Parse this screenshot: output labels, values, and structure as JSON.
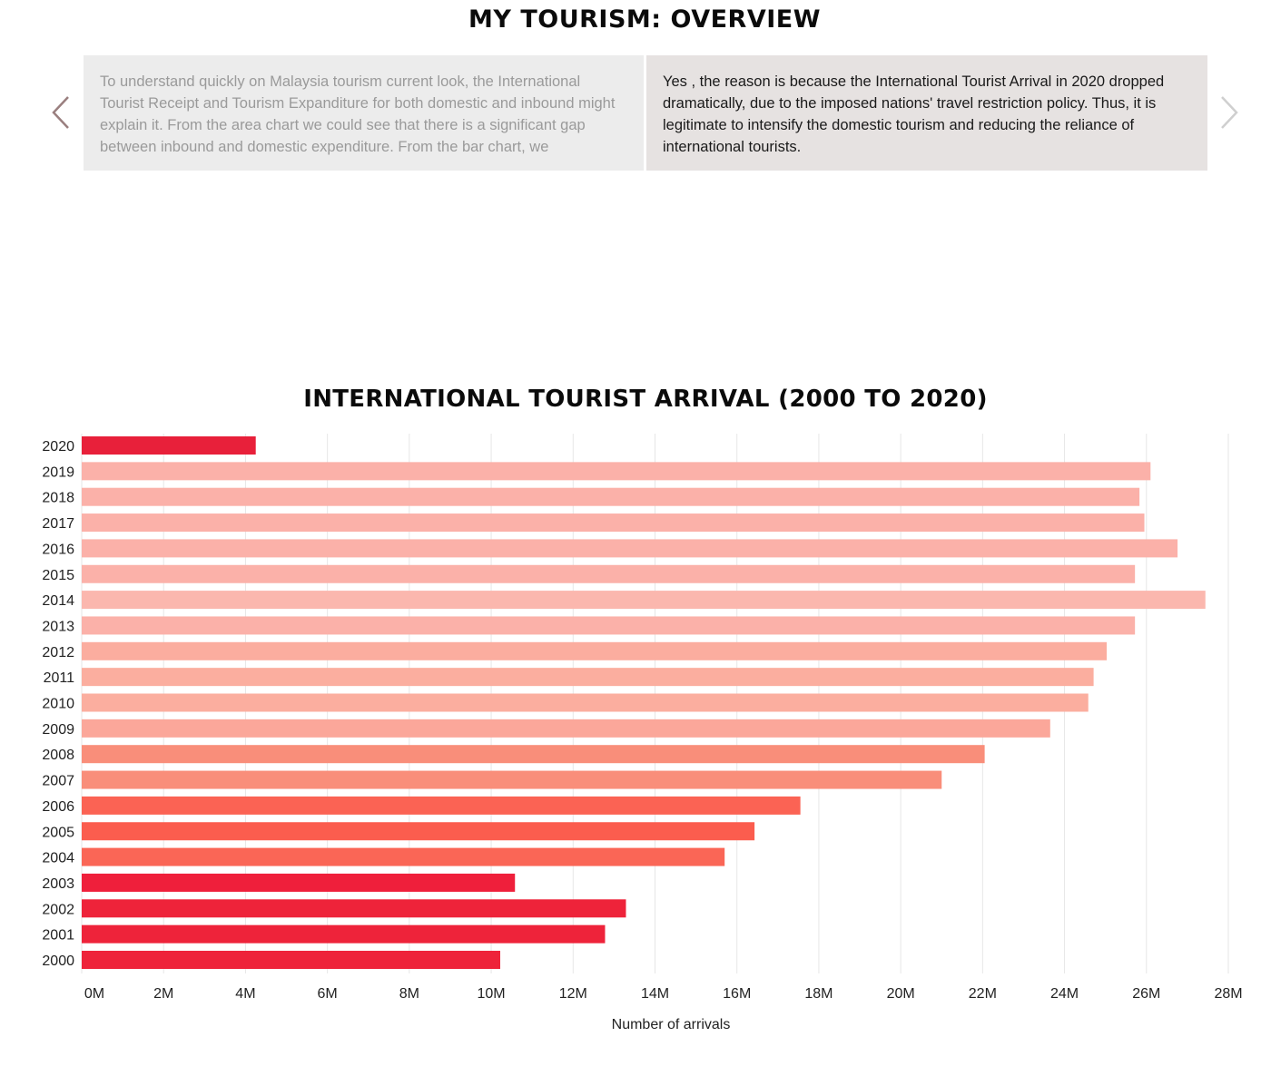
{
  "header": {
    "title": "MY TOURISM: OVERVIEW"
  },
  "carousel": {
    "prev_icon": "chevron-left-icon",
    "next_icon": "chevron-right-icon",
    "slides": [
      {
        "text": "To understand quickly on Malaysia tourism current look, the International Tourist Receipt and Tourism Expanditure for both domestic and inbound might explain it. From the area chart we could see that there is a significant gap between inbound and domestic expenditure. From the bar chart, we"
      },
      {
        "text": "Yes , the reason is because the International Tourist Arrival in 2020 dropped dramatically, due to the imposed nations' travel restriction policy. Thus, it is legitimate to intensify the domestic tourism and reducing the reliance of international tourists."
      }
    ]
  },
  "chart_data": {
    "type": "bar",
    "orientation": "horizontal",
    "title": "INTERNATIONAL TOURIST ARRIVAL (2000 TO 2020)",
    "xlabel": "Number of arrivals",
    "ylabel": "",
    "xlim": [
      0,
      28000000
    ],
    "xticks": [
      "0M",
      "2M",
      "4M",
      "6M",
      "8M",
      "10M",
      "12M",
      "14M",
      "16M",
      "18M",
      "20M",
      "22M",
      "24M",
      "26M",
      "28M"
    ],
    "grid": "vertical",
    "categories": [
      "2020",
      "2019",
      "2018",
      "2017",
      "2016",
      "2015",
      "2014",
      "2013",
      "2012",
      "2011",
      "2010",
      "2009",
      "2008",
      "2007",
      "2006",
      "2005",
      "2004",
      "2003",
      "2002",
      "2001",
      "2000"
    ],
    "values": [
      4250000,
      26100000,
      25830000,
      25950000,
      26760000,
      25720000,
      27440000,
      25720000,
      25030000,
      24710000,
      24580000,
      23650000,
      22050000,
      21000000,
      17550000,
      16430000,
      15700000,
      10580000,
      13290000,
      12780000,
      10220000
    ],
    "colors": [
      "#e8203a",
      "#fbb1a9",
      "#fbb1a9",
      "#fbb1a9",
      "#fbb1a9",
      "#fbb1a9",
      "#fbb7ae",
      "#fbb1a9",
      "#fbad9f",
      "#fbae9f",
      "#fbae9f",
      "#fba79a",
      "#f98e7a",
      "#f98e7a",
      "#fb6354",
      "#fb5d4e",
      "#fa6656",
      "#ef1f3b",
      "#ee233a",
      "#ee233a",
      "#ee233a"
    ]
  }
}
